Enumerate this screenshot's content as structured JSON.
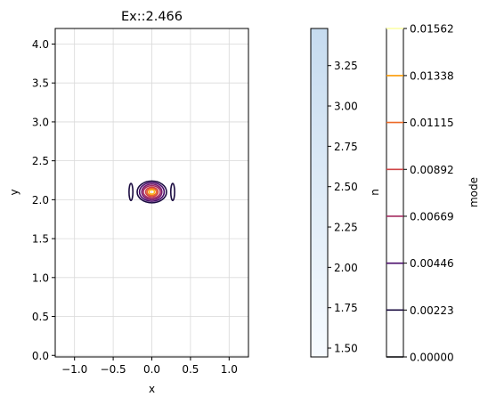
{
  "chart_data": [
    {
      "type": "contour",
      "title": "Ex::2.466",
      "xlabel": "x",
      "ylabel": "y",
      "xlim": [
        -1.25,
        1.25
      ],
      "ylim": [
        -0.02,
        4.2
      ],
      "xticks": [
        "−1.0",
        "−0.5",
        "0.0",
        "0.5",
        "1.0"
      ],
      "xtick_values": [
        -1.0,
        -0.5,
        0.0,
        0.5,
        1.0
      ],
      "yticks": [
        "0.0",
        "0.5",
        "1.0",
        "1.5",
        "2.0",
        "2.5",
        "3.0",
        "3.5",
        "4.0"
      ],
      "ytick_values": [
        0.0,
        0.5,
        1.0,
        1.5,
        2.0,
        2.5,
        3.0,
        3.5,
        4.0
      ],
      "grid": true,
      "mode_center": [
        0.0,
        2.1
      ],
      "contours": [
        {
          "level": 0.00223,
          "color": "#1b0c41",
          "rx": 0.19,
          "ry": 0.14
        },
        {
          "level": 0.00446,
          "color": "#4a0c6b",
          "rx": 0.16,
          "ry": 0.12
        },
        {
          "level": 0.00669,
          "color": "#781c6d",
          "rx": 0.13,
          "ry": 0.1
        },
        {
          "level": 0.00892,
          "color": "#a52c60",
          "rx": 0.11,
          "ry": 0.08
        },
        {
          "level": 0.01115,
          "color": "#cf4446",
          "rx": 0.08,
          "ry": 0.06
        },
        {
          "level": 0.01338,
          "color": "#ed6925",
          "rx": 0.06,
          "ry": 0.045
        },
        {
          "level": 0.01562,
          "color": "#fbb61a",
          "rx": 0.035,
          "ry": 0.028
        }
      ],
      "side_lobes": [
        {
          "x": -0.27,
          "y": 2.1,
          "rx": 0.025,
          "ry": 0.11,
          "color": "#1b0c41"
        },
        {
          "x": 0.27,
          "y": 2.1,
          "rx": 0.025,
          "ry": 0.11,
          "color": "#1b0c41"
        }
      ]
    },
    {
      "type": "colorbar",
      "label": "n",
      "range": [
        1.445,
        3.48
      ],
      "ticks": [
        "1.50",
        "1.75",
        "2.00",
        "2.25",
        "2.50",
        "2.75",
        "3.00",
        "3.25"
      ],
      "tick_values": [
        1.5,
        1.75,
        2.0,
        2.25,
        2.5,
        2.75,
        3.0,
        3.25
      ],
      "color_low": "#f7fbff",
      "color_high": "#c6dbef"
    },
    {
      "type": "colorbar",
      "label": "mode",
      "range": [
        0.0,
        0.01562
      ],
      "ticks": [
        "0.00000",
        "0.00223",
        "0.00446",
        "0.00669",
        "0.00892",
        "0.01115",
        "0.01338",
        "0.01562"
      ],
      "tick_values": [
        0.0,
        0.00223,
        0.00446,
        0.00669,
        0.00892,
        0.01115,
        0.01338,
        0.01562
      ],
      "level_colors": [
        "#000004",
        "#1b0c41",
        "#4a0c6b",
        "#a52c60",
        "#cf4446",
        "#ed6925",
        "#fb9b06",
        "#fcffa4"
      ]
    }
  ]
}
